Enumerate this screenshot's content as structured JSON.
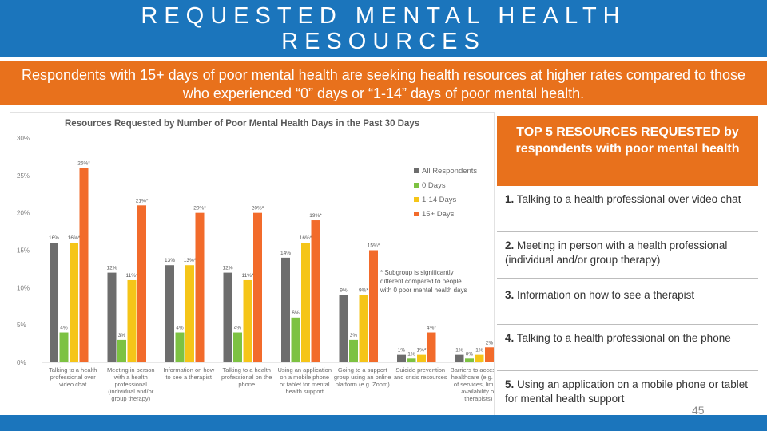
{
  "header": {
    "title": "REQUESTED MENTAL HEALTH RESOURCES",
    "subtitle": "Respondents with 15+ days of poor mental health are seeking health resources at higher rates compared to those who experienced “0” days or “1-14” days of poor mental health."
  },
  "colors": {
    "top_bar": "#1b75bc",
    "accent_orange": "#e8711c",
    "series_all": "#6d6d6d",
    "series_0": "#7dc242",
    "series_1_14": "#f5c518",
    "series_15": "#f26b2b"
  },
  "chart_data": {
    "type": "bar",
    "title": "Resources Requested by Number of Poor Mental Health Days in the Past 30 Days",
    "ylim": [
      0,
      30
    ],
    "yticks": [
      "0%",
      "5%",
      "10%",
      "15%",
      "20%",
      "25%",
      "30%"
    ],
    "ytick_values": [
      0,
      5,
      10,
      15,
      20,
      25,
      30
    ],
    "grid": false,
    "legend_position": "right",
    "categories": [
      "Talking to a health professional over video chat",
      "Meeting in person with a health professional (individual and/or group therapy)",
      "Information on how to see a therapist",
      "Talking to a health professional on the phone",
      "Using an application on a mobile phone or tablet for mental health support",
      "Going to a support group using an online platform (e.g. Zoom)",
      "Suicide prevention and crisis resources",
      "Barriers to accessing healthcare (e.g. cost of services, limited availability of therapists)"
    ],
    "category_labels": [
      [
        "Talking to a health",
        "professional over",
        "video chat"
      ],
      [
        "Meeting in person",
        "with a health",
        "professional",
        "(individual and/or",
        "group therapy)"
      ],
      [
        "Information on how",
        "to see a therapist"
      ],
      [
        "Talking to a health",
        "professional on the",
        "phone"
      ],
      [
        "Using an application",
        "on a mobile phone",
        "or tablet for mental",
        "health support"
      ],
      [
        "Going to a support",
        "group using an online",
        "platform (e.g. Zoom)"
      ],
      [
        "Suicide prevention",
        "and crisis resources"
      ],
      [
        "Barriers to accessing",
        "healthcare (e.g. cost",
        "of services, limited",
        "availability of",
        "therapists)"
      ]
    ],
    "series": [
      {
        "name": "All Respondents",
        "values": [
          16,
          12,
          13,
          12,
          14,
          9,
          1,
          1
        ],
        "labels": [
          "16%",
          "12%",
          "13%",
          "12%",
          "14%",
          "9%",
          "1%",
          "1%"
        ]
      },
      {
        "name": "0 Days",
        "values": [
          4,
          3,
          4,
          4,
          6,
          3,
          0.5,
          0.5
        ],
        "labels": [
          "4%",
          "3%",
          "4%",
          "4%",
          "6%",
          "3%",
          "1%",
          "0%"
        ]
      },
      {
        "name": "1-14 Days",
        "values": [
          16,
          11,
          13,
          11,
          16,
          9,
          1,
          1
        ],
        "labels": [
          "16%*",
          "11%*",
          "13%*",
          "11%*",
          "16%*",
          "9%*",
          "1%*",
          "1%"
        ]
      },
      {
        "name": "15+ Days",
        "values": [
          26,
          21,
          20,
          20,
          19,
          15,
          4,
          2
        ],
        "labels": [
          "26%*",
          "21%*",
          "20%*",
          "20%*",
          "19%*",
          "15%*",
          "4%*",
          "2%"
        ]
      }
    ],
    "annotation": [
      "* Subgroup is significantly",
      "different compared to people",
      "with 0 poor mental health days"
    ]
  },
  "top5": {
    "header": "TOP 5 RESOURCES REQUESTED by respondents with poor mental health",
    "items": [
      {
        "num": "1.",
        "text": " Talking to a health professional over video chat"
      },
      {
        "num": "2.",
        "text": " Meeting in person with a health professional (individual and/or group therapy)"
      },
      {
        "num": "3.",
        "text": " Information on how to see a therapist"
      },
      {
        "num": "4.",
        "text": " Talking to a health professional on the phone"
      },
      {
        "num": "5.",
        "text": " Using an application on a mobile phone or tablet for mental health support"
      }
    ]
  },
  "footer": {
    "page_number": "45"
  }
}
